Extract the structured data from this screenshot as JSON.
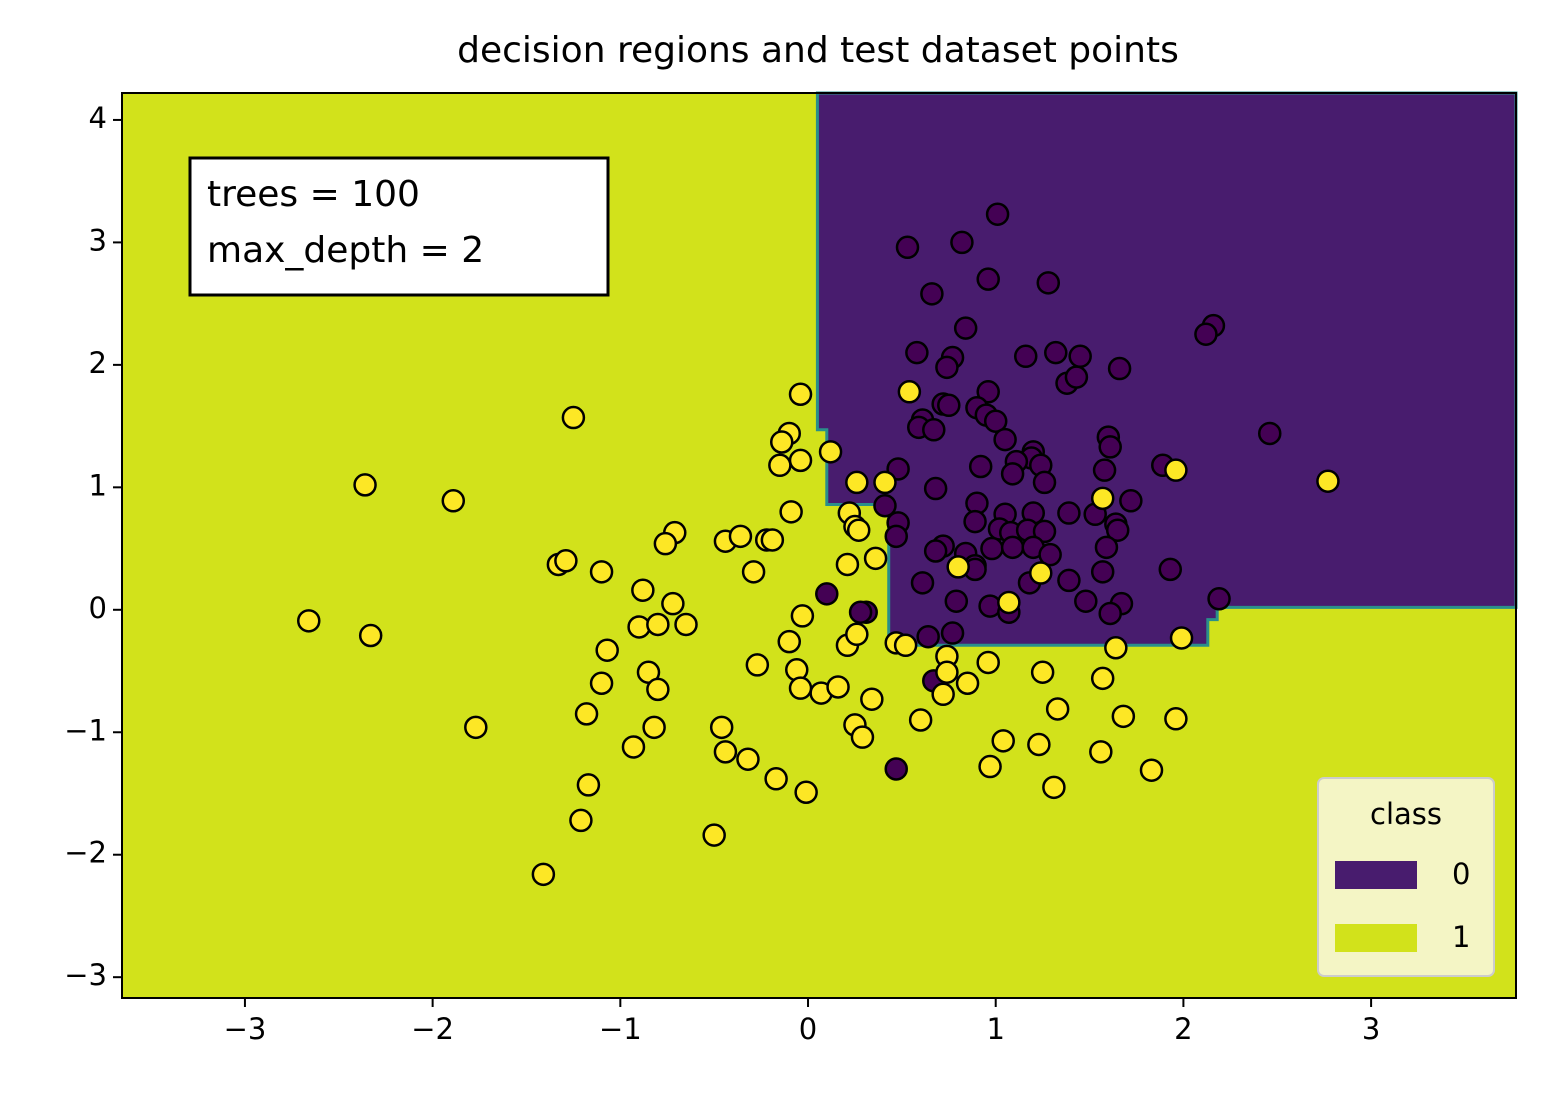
{
  "chart_data": {
    "type": "scatter",
    "title": "decision regions and test dataset points",
    "annotation": {
      "lines": [
        "trees = 100",
        "max_depth = 2"
      ]
    },
    "legend": {
      "title": "class",
      "loc": "lower right"
    },
    "regions": [
      {
        "name": "0",
        "color": "#481c6e",
        "x": [
          0.05,
          0.05,
          0.1,
          0.1,
          0.43,
          0.43,
          2.13,
          2.13,
          2.18,
          2.18,
          3.772,
          3.772
        ],
        "y": [
          4.22,
          1.47,
          1.47,
          0.86,
          0.86,
          -0.29,
          -0.29,
          -0.08,
          -0.08,
          0.02,
          0.02,
          4.22
        ]
      },
      {
        "name": "1",
        "color": "#d2e21b"
      }
    ],
    "series": [
      {
        "color": "#440154",
        "x": [
          1.01,
          0.53,
          0.82,
          0.66,
          0.96,
          1.28,
          0.84,
          0.58,
          2.16,
          2.12,
          1.16,
          1.32,
          1.45,
          1.66,
          0.77,
          0.74,
          1.38,
          1.43,
          0.96,
          0.72,
          0.75,
          0.9,
          0.95,
          1.0,
          0.61,
          0.59,
          0.67,
          1.05,
          1.6,
          1.61,
          2.46,
          1.2,
          1.19,
          1.11,
          0.92,
          1.24,
          1.09,
          1.58,
          1.89,
          0.48,
          1.26,
          0.68,
          0.41,
          0.9,
          1.05,
          1.2,
          1.39,
          1.53,
          1.72,
          0.89,
          1.02,
          1.08,
          1.17,
          1.26,
          1.64,
          1.65,
          0.48,
          0.47,
          0.72,
          0.68,
          0.98,
          1.09,
          1.2,
          1.29,
          1.59,
          0.84,
          0.89,
          0.89,
          1.57,
          1.93,
          1.39,
          1.18,
          0.61,
          0.79,
          0.97,
          1.48,
          1.67,
          1.61,
          1.07,
          2.19,
          0.1,
          0.31,
          0.28,
          0.64,
          0.77,
          0.67,
          0.47
        ],
        "y": [
          3.23,
          2.96,
          3.0,
          2.58,
          2.7,
          2.67,
          2.3,
          2.1,
          2.32,
          2.25,
          2.07,
          2.1,
          2.07,
          1.97,
          2.06,
          1.98,
          1.85,
          1.9,
          1.78,
          1.68,
          1.67,
          1.65,
          1.59,
          1.54,
          1.55,
          1.49,
          1.47,
          1.39,
          1.41,
          1.33,
          1.44,
          1.29,
          1.24,
          1.21,
          1.17,
          1.18,
          1.11,
          1.14,
          1.18,
          1.15,
          1.04,
          0.99,
          0.85,
          0.87,
          0.78,
          0.79,
          0.79,
          0.78,
          0.89,
          0.72,
          0.66,
          0.63,
          0.65,
          0.64,
          0.7,
          0.65,
          0.71,
          0.6,
          0.52,
          0.48,
          0.5,
          0.51,
          0.51,
          0.45,
          0.51,
          0.46,
          0.36,
          0.33,
          0.31,
          0.33,
          0.24,
          0.22,
          0.22,
          0.07,
          0.03,
          0.07,
          0.05,
          -0.03,
          -0.02,
          0.09,
          0.13,
          -0.02,
          -0.02,
          -0.22,
          -0.19,
          -0.58,
          -1.3
        ]
      },
      {
        "color": "#fde725",
        "x": [
          -1.25,
          -2.36,
          -1.89,
          -2.66,
          -2.33,
          -1.77,
          -1.33,
          -1.29,
          -1.1,
          -1.07,
          -1.1,
          -1.18,
          -1.17,
          -1.21,
          -1.41,
          -0.88,
          -0.9,
          -0.85,
          -0.8,
          -0.8,
          -0.72,
          -0.65,
          -0.71,
          -0.76,
          -0.82,
          -0.93,
          -0.44,
          -0.36,
          -0.29,
          -0.22,
          -0.19,
          -0.46,
          -0.44,
          -0.32,
          -0.5,
          -0.27,
          -0.17,
          -0.01,
          -0.1,
          -0.06,
          -0.03,
          -0.04,
          0.07,
          0.16,
          -0.04,
          -0.1,
          -0.14,
          -0.15,
          -0.04,
          -0.09,
          0.12,
          0.22,
          0.26,
          0.25,
          0.27,
          0.21,
          0.36,
          0.41,
          0.21,
          0.26,
          0.25,
          0.29,
          0.34,
          0.47,
          0.52,
          0.6,
          0.54,
          0.74,
          0.74,
          0.72,
          0.85,
          0.96,
          0.97,
          1.04,
          1.23,
          1.25,
          1.33,
          1.31,
          1.24,
          1.07,
          1.57,
          1.57,
          1.56,
          1.64,
          1.68,
          1.83,
          1.96,
          1.99,
          1.96,
          2.77,
          0.8
        ],
        "y": [
          1.57,
          1.02,
          0.89,
          -0.09,
          -0.21,
          -0.96,
          0.37,
          0.4,
          0.31,
          -0.33,
          -0.6,
          -0.85,
          -1.43,
          -1.72,
          -2.16,
          0.16,
          -0.14,
          -0.51,
          -0.65,
          -0.12,
          0.05,
          -0.12,
          0.63,
          0.54,
          -0.96,
          -1.12,
          0.56,
          0.6,
          0.31,
          0.57,
          0.57,
          -0.96,
          -1.16,
          -1.22,
          -1.84,
          -0.45,
          -1.38,
          -1.49,
          -0.26,
          -0.49,
          -0.05,
          -0.64,
          -0.68,
          -0.63,
          1.76,
          1.44,
          1.37,
          1.18,
          1.22,
          0.8,
          1.29,
          0.79,
          1.04,
          0.68,
          0.65,
          0.37,
          0.42,
          1.04,
          -0.29,
          -0.2,
          -0.94,
          -1.04,
          -0.73,
          -0.27,
          -0.29,
          -0.9,
          1.78,
          -0.38,
          -0.51,
          -0.69,
          -0.6,
          -0.43,
          -1.28,
          -1.07,
          -1.1,
          -0.51,
          -0.81,
          -1.45,
          0.3,
          0.06,
          0.91,
          -0.56,
          -1.16,
          -0.31,
          -0.87,
          -1.31,
          -0.89,
          -0.23,
          1.14,
          1.05,
          0.35
        ]
      }
    ],
    "xlim": [
      -3.655,
      3.772
    ],
    "ylim": [
      -3.17,
      4.22
    ],
    "xticks": [
      {
        "value": -3,
        "label": "−3"
      },
      {
        "value": -2,
        "label": "−2"
      },
      {
        "value": -1,
        "label": "−1"
      },
      0,
      1,
      2,
      3
    ],
    "yticks": [
      {
        "value": -3,
        "label": "−3"
      },
      {
        "value": -2,
        "label": "−2"
      },
      {
        "value": -1,
        "label": "−1"
      },
      0,
      1,
      2,
      3,
      4
    ]
  }
}
